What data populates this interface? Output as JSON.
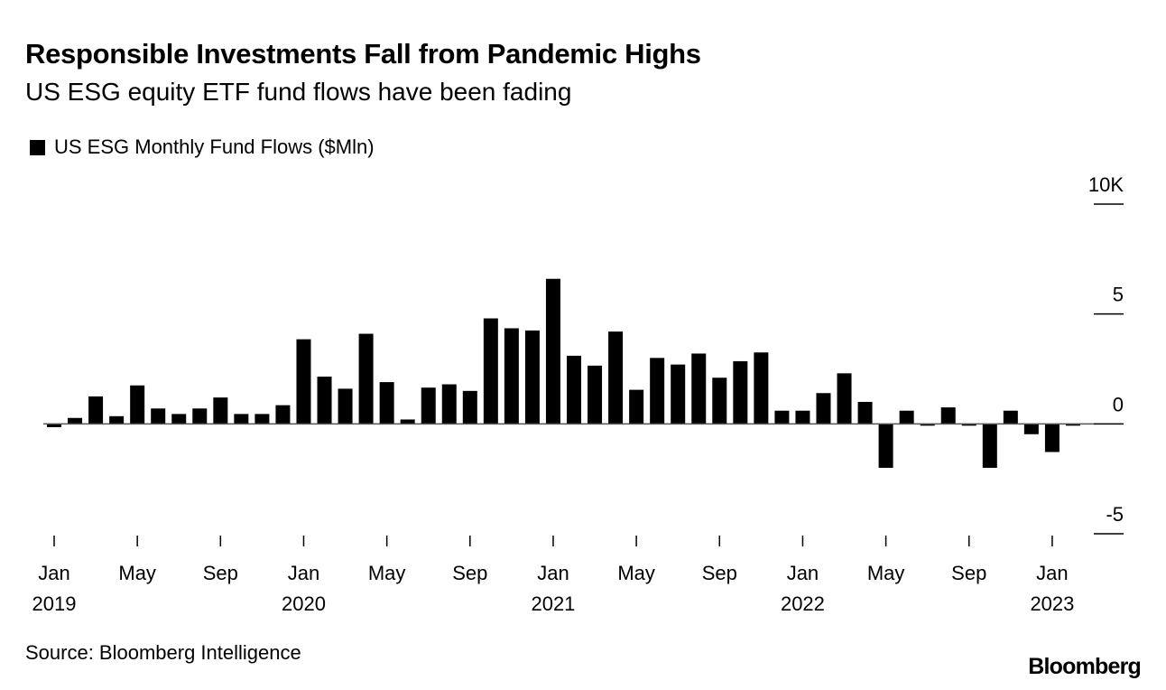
{
  "chart_data": {
    "type": "bar",
    "title": "Responsible Investments Fall from Pandemic Highs",
    "subtitle": "US ESG equity ETF fund flows have been fading",
    "legend": [
      "US ESG Monthly Fund Flows ($Mln)"
    ],
    "legend_position": "top-left",
    "source": "Source: Bloomberg Intelligence",
    "brand": "Bloomberg",
    "ylim": [
      -5,
      10
    ],
    "yticks": [
      {
        "v": 10,
        "label": "10K"
      },
      {
        "v": 5,
        "label": "5"
      },
      {
        "v": 0,
        "label": "0"
      },
      {
        "v": -5,
        "label": "-5"
      }
    ],
    "xticks": [
      {
        "i": 0,
        "label": "Jan",
        "year": "2019"
      },
      {
        "i": 4,
        "label": "May"
      },
      {
        "i": 8,
        "label": "Sep"
      },
      {
        "i": 12,
        "label": "Jan",
        "year": "2020"
      },
      {
        "i": 16,
        "label": "May"
      },
      {
        "i": 20,
        "label": "Sep"
      },
      {
        "i": 24,
        "label": "Jan",
        "year": "2021"
      },
      {
        "i": 28,
        "label": "May"
      },
      {
        "i": 32,
        "label": "Sep"
      },
      {
        "i": 36,
        "label": "Jan",
        "year": "2022"
      },
      {
        "i": 40,
        "label": "May"
      },
      {
        "i": 44,
        "label": "Sep"
      },
      {
        "i": 48,
        "label": "Jan",
        "year": "2023"
      }
    ],
    "start": "2019-01",
    "values": [
      -0.15,
      0.27,
      1.25,
      0.35,
      1.75,
      0.7,
      0.45,
      0.7,
      1.2,
      0.45,
      0.45,
      0.85,
      3.85,
      2.15,
      1.6,
      4.1,
      1.9,
      0.2,
      1.65,
      1.8,
      1.5,
      4.8,
      4.35,
      4.25,
      6.6,
      3.1,
      2.65,
      4.2,
      1.55,
      3.0,
      2.7,
      3.2,
      2.1,
      2.85,
      3.25,
      0.6,
      0.6,
      1.4,
      2.3,
      1.0,
      -2.0,
      0.6,
      -0.05,
      0.75,
      -0.05,
      -2.0,
      0.6,
      -0.47,
      -1.28,
      -0.05
    ],
    "bar_color": "#000000"
  }
}
